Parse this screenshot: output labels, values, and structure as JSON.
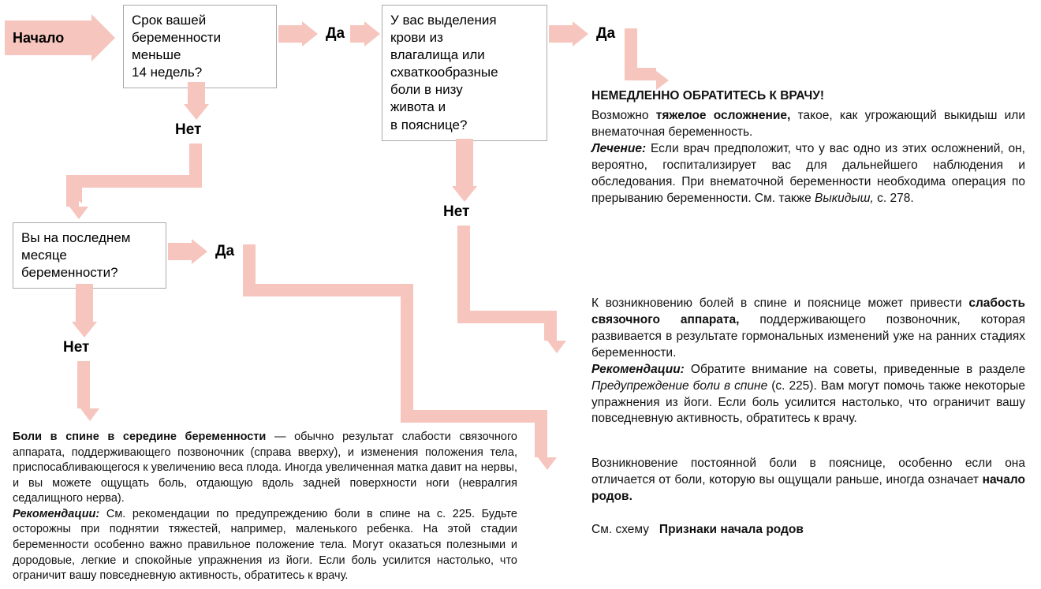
{
  "colors": {
    "pink": "#f6c5bd",
    "border": "#aaaaaa",
    "text": "#000000",
    "bg": "#ffffff"
  },
  "start": "Начало",
  "q1": "Срок вашей\nбеременности\nменьше\n14 недель?",
  "q2": "У вас выделения\nкрови из\nвлагалища или\nсхваткообразные\nболи в низу\nживота  и\nв пояснице?",
  "q3": "Вы на последнем\nмесяце\nберемен­ности?",
  "yes": "Да",
  "no": "Нет",
  "ans_top_title": "НЕМЕДЛЕННО ОБРАТИТЕСЬ К ВРАЧУ!",
  "ans_top_body": "Возможно <b>тяжелое осложнение,</b> такое, как угрожающий выки­дыш или внематочная беременность.<br><b><i>Лечение:</i></b> Если врач предположит, что у вас одно из этих осложне­ний, он, вероятно, госпитализирует вас для дальнейшего наблюде­ния и обследования. При внематочной беременности необходима операция по прерыванию беременности. См. также <i>Выкидыш,</i> с. 278.",
  "ans_mid_body": "К возникновению болей в спине и пояснице может привести <b>сла­бость связочного аппарата,</b> поддерживающего позвоночник, которая развивается в результате гормональных изменений уже на ранних стадиях беременности.<br><b><i>Рекомендации:</i></b> Обратите внимание на советы, приведенные в разделе <i>Предупреждение боли в спине</i> (с. 225). Вам могут помочь также некоторые упражнения из йоги. Если боль усилится настоль­ко, что ограничит вашу повседневную активность, обратитесь к врачу.",
  "ans_bot_right": "Возникновение постоянной боли в пояснице, особенно если она отличается от боли, которую вы ощущали раньше, иногда означает <b>начало родов.</b><br><br>См. схему &nbsp;&nbsp;<b>Признаки начала родов</b>",
  "ans_bot_left": "<b>Боли в спине в середине беременности</b> — обычно результат слабости свя­зочного аппарата, поддерживающего позвоночник (справа вверху), и изме­нения положения тела, приспосабливающегося к увеличению веса плода. Иногда увеличенная матка давит на нервы, и вы можете ощущать боль, отда­ющую вдоль задней поверхности ноги (невралгия седалищного нерва).<br><b><i>Рекомендации:</i></b> См. рекомендации по предупреждению боли в спине на с. 225. Будьте осторожны при поднятии тяжестей, например, маленького ребенка. На этой стадии беременности особенно важно правильное поло­жение тела. Могут оказаться полезными и дородовые, легкие и спокойные упражнения из йоги. Если боль усилится настолько, что ограничит вашу повседневную активность, обратитесь к врачу."
}
